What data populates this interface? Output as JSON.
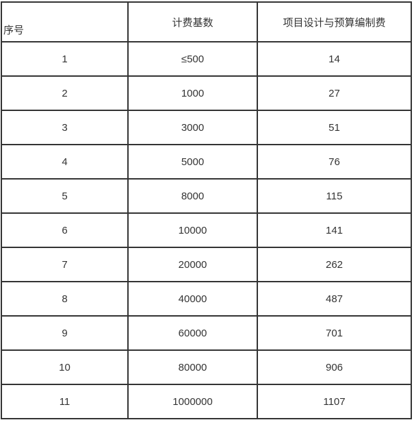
{
  "table": {
    "columns": [
      {
        "label": "序号"
      },
      {
        "label": "计费基数"
      },
      {
        "label": "项目设计与预算编制费"
      }
    ],
    "rows": [
      [
        "1",
        "≤500",
        "14"
      ],
      [
        "2",
        "1000",
        "27"
      ],
      [
        "3",
        "3000",
        "51"
      ],
      [
        "4",
        "5000",
        "76"
      ],
      [
        "5",
        "8000",
        "115"
      ],
      [
        "6",
        "10000",
        "141"
      ],
      [
        "7",
        "20000",
        "262"
      ],
      [
        "8",
        "40000",
        "487"
      ],
      [
        "9",
        "60000",
        "701"
      ],
      [
        "10",
        "80000",
        "906"
      ],
      [
        "11",
        "1000000",
        "1107"
      ]
    ],
    "colors": {
      "border": "#333333",
      "text": "#333333",
      "background": "#ffffff"
    }
  }
}
